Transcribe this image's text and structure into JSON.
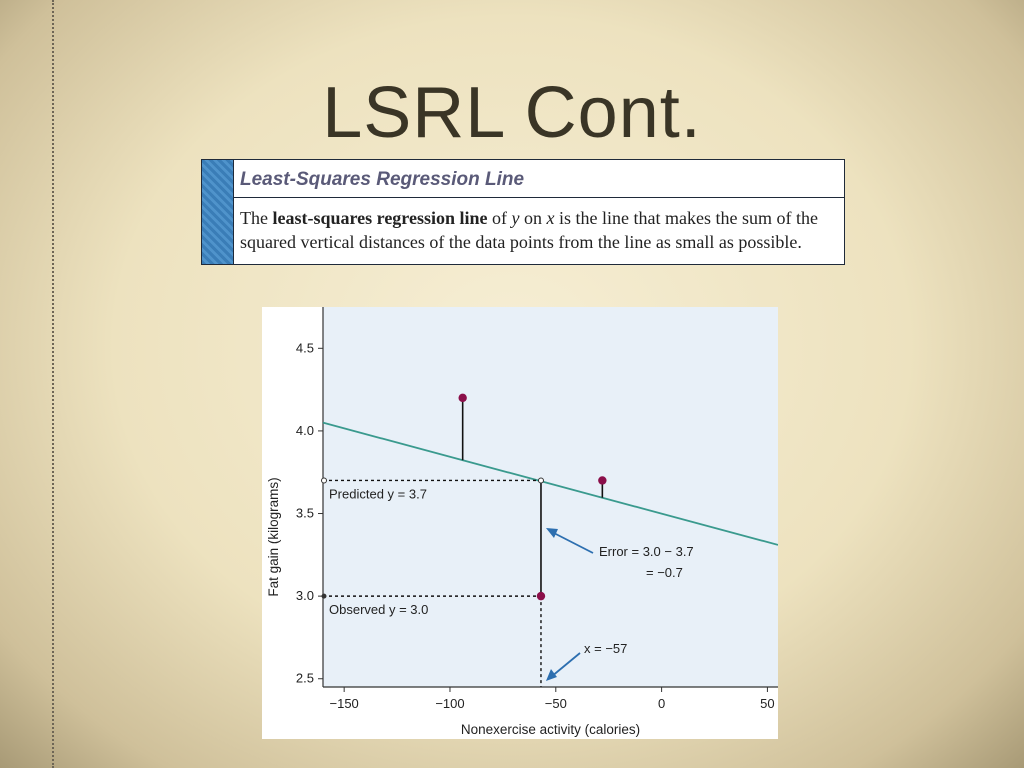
{
  "slide": {
    "title": "LSRL Cont."
  },
  "definition": {
    "heading": "Least-Squares Regression Line",
    "text_1": "The ",
    "term": "least-squares regression line",
    "text_2": " of ",
    "var_y": "y",
    "text_3": " on ",
    "var_x": "x",
    "text_4": " is the line that makes the sum of the squared vertical distances of the data points from the line as small as possible."
  },
  "colors": {
    "line": "#3a9a8e",
    "point": "#8b0f4a",
    "plot_bg": "#e8f0f8",
    "arrow": "#2d6fb0"
  },
  "chart_data": {
    "type": "scatter",
    "xlabel": "Nonexercise activity (calories)",
    "ylabel": "Fat gain (kilograms)",
    "xlim": [
      -160,
      55
    ],
    "ylim": [
      2.45,
      4.75
    ],
    "xticks": [
      -150,
      -100,
      -50,
      0,
      50
    ],
    "xtick_labels": [
      "−150",
      "−100",
      "−50",
      "0",
      "50"
    ],
    "yticks": [
      2.5,
      3.0,
      3.5,
      4.0,
      4.5
    ],
    "ytick_labels": [
      "2.5",
      "3.0",
      "3.5",
      "4.0",
      "4.5"
    ],
    "line": {
      "x": [
        -160,
        55
      ],
      "y": [
        4.05,
        3.31
      ]
    },
    "points": [
      {
        "x": -94,
        "y": 4.2
      },
      {
        "x": -57,
        "y": 3.0
      },
      {
        "x": -28,
        "y": 3.7
      }
    ],
    "predicted_label": "Predicted y = 3.7",
    "observed_label": "Observed y = 3.0",
    "error_label_1": "Error = 3.0 − 3.7",
    "error_label_2": "= −0.7",
    "x_label": "x = −57",
    "highlight": {
      "x": -57,
      "predicted": 3.7,
      "observed": 3.0
    }
  }
}
